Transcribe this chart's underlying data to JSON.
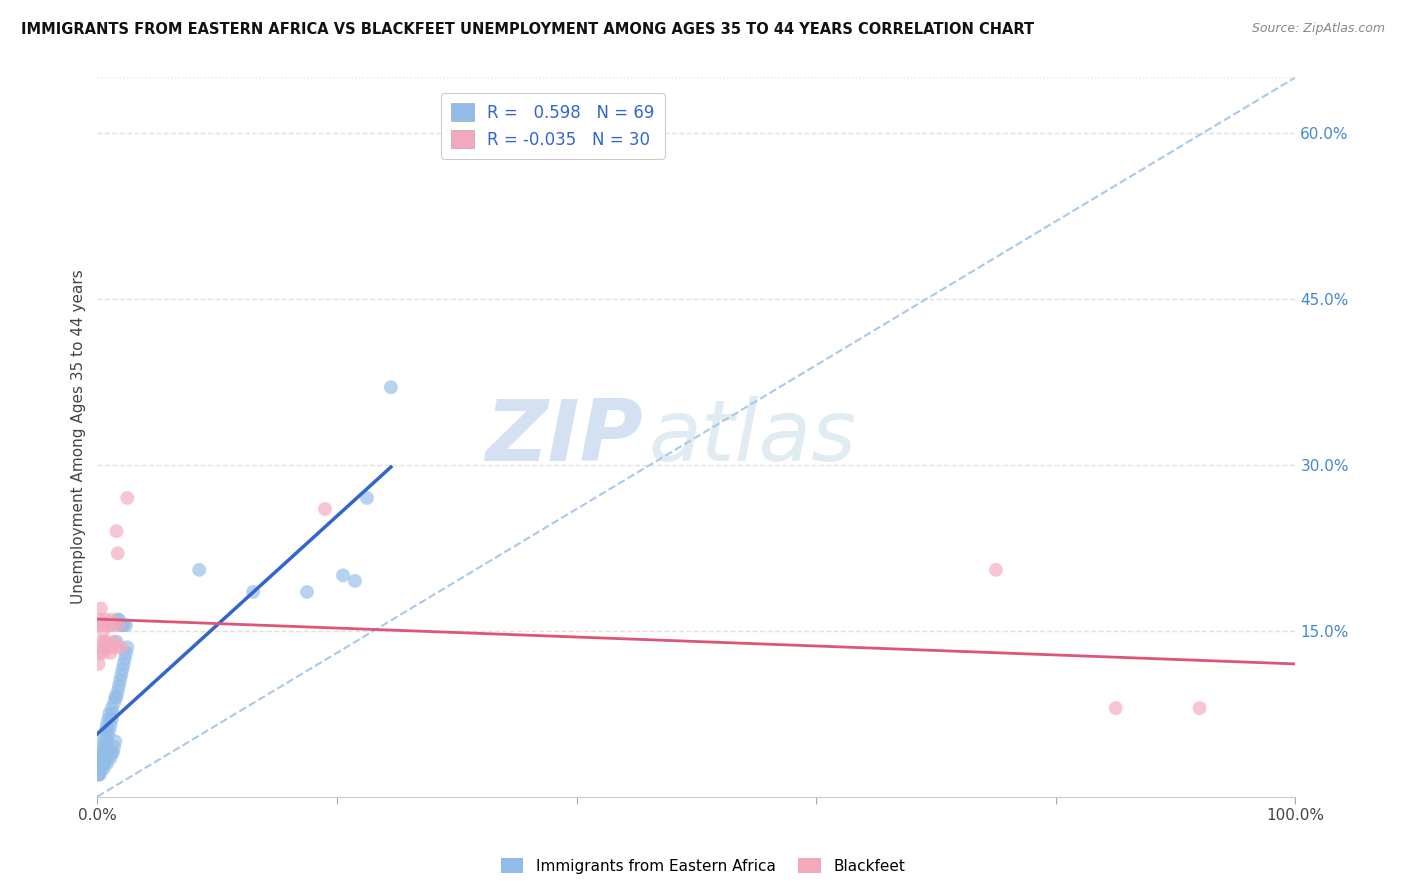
{
  "title": "IMMIGRANTS FROM EASTERN AFRICA VS BLACKFEET UNEMPLOYMENT AMONG AGES 35 TO 44 YEARS CORRELATION CHART",
  "source": "Source: ZipAtlas.com",
  "ylabel": "Unemployment Among Ages 35 to 44 years",
  "xlim": [
    0.0,
    1.0
  ],
  "ylim": [
    0.0,
    0.65
  ],
  "xticks": [
    0.0,
    0.2,
    0.4,
    0.6,
    0.8,
    1.0
  ],
  "xticklabels": [
    "0.0%",
    "",
    "",
    "",
    "",
    "100.0%"
  ],
  "yticks_right": [
    0.15,
    0.3,
    0.45,
    0.6
  ],
  "yticklabels_right": [
    "15.0%",
    "30.0%",
    "45.0%",
    "60.0%"
  ],
  "legend_label1": "R =   0.598   N = 69",
  "legend_label2": "R = -0.035   N = 30",
  "legend_label1_bottom": "Immigrants from Eastern Africa",
  "legend_label2_bottom": "Blackfeet",
  "blue_color": "#92bce8",
  "pink_color": "#f4a8bc",
  "blue_line_color": "#3366cc",
  "pink_line_color": "#dd5577",
  "diag_color": "#aac8e8",
  "blue_scatter_x": [
    0.0005,
    0.001,
    0.001,
    0.0015,
    0.002,
    0.002,
    0.0025,
    0.003,
    0.003,
    0.0035,
    0.004,
    0.004,
    0.005,
    0.005,
    0.006,
    0.006,
    0.007,
    0.007,
    0.008,
    0.008,
    0.009,
    0.009,
    0.01,
    0.01,
    0.011,
    0.012,
    0.012,
    0.013,
    0.014,
    0.015,
    0.016,
    0.017,
    0.018,
    0.019,
    0.02,
    0.021,
    0.022,
    0.023,
    0.024,
    0.025,
    0.001,
    0.002,
    0.003,
    0.004,
    0.005,
    0.006,
    0.007,
    0.008,
    0.009,
    0.01,
    0.011,
    0.012,
    0.013,
    0.014,
    0.015,
    0.016,
    0.017,
    0.018,
    0.0195,
    0.021,
    0.022,
    0.024,
    0.085,
    0.13,
    0.175,
    0.205,
    0.215,
    0.225,
    0.245
  ],
  "blue_scatter_y": [
    0.02,
    0.025,
    0.03,
    0.025,
    0.03,
    0.035,
    0.03,
    0.035,
    0.04,
    0.03,
    0.035,
    0.045,
    0.04,
    0.05,
    0.04,
    0.055,
    0.045,
    0.06,
    0.05,
    0.065,
    0.055,
    0.07,
    0.06,
    0.075,
    0.065,
    0.07,
    0.08,
    0.075,
    0.085,
    0.09,
    0.09,
    0.095,
    0.1,
    0.105,
    0.11,
    0.115,
    0.12,
    0.125,
    0.13,
    0.135,
    0.02,
    0.02,
    0.025,
    0.03,
    0.025,
    0.03,
    0.035,
    0.03,
    0.035,
    0.04,
    0.035,
    0.04,
    0.04,
    0.045,
    0.05,
    0.14,
    0.16,
    0.16,
    0.155,
    0.155,
    0.155,
    0.155,
    0.205,
    0.185,
    0.185,
    0.2,
    0.195,
    0.27,
    0.37
  ],
  "pink_scatter_x": [
    0.001,
    0.001,
    0.002,
    0.002,
    0.003,
    0.003,
    0.004,
    0.004,
    0.005,
    0.005,
    0.006,
    0.007,
    0.008,
    0.009,
    0.01,
    0.01,
    0.011,
    0.012,
    0.013,
    0.014,
    0.015,
    0.016,
    0.017,
    0.018,
    0.02,
    0.025,
    0.19,
    0.75,
    0.85,
    0.92
  ],
  "pink_scatter_y": [
    0.12,
    0.155,
    0.13,
    0.16,
    0.14,
    0.17,
    0.135,
    0.155,
    0.13,
    0.15,
    0.14,
    0.16,
    0.14,
    0.155,
    0.135,
    0.155,
    0.13,
    0.16,
    0.155,
    0.14,
    0.135,
    0.24,
    0.22,
    0.155,
    0.135,
    0.27,
    0.26,
    0.205,
    0.08,
    0.08
  ],
  "watermark_zip": "ZIP",
  "watermark_atlas": "atlas",
  "background_color": "#ffffff",
  "grid_color": "#e0e0e0"
}
